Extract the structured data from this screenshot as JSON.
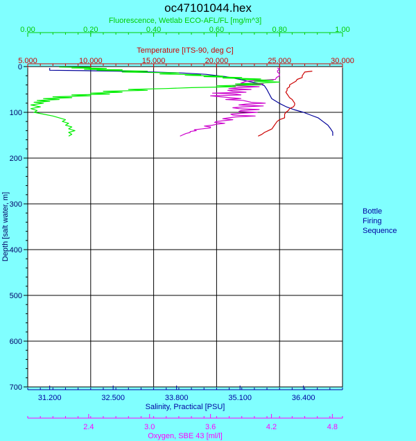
{
  "chart_data": {
    "type": "line",
    "title": "oc47101044.hex",
    "grid": true,
    "depth_axis": {
      "label": "Depth [salt water, m]",
      "range": [
        0,
        700
      ],
      "ticks": [
        "0",
        "100",
        "200",
        "300",
        "400",
        "500",
        "600",
        "700"
      ],
      "inverted": true
    },
    "x_axes": [
      {
        "id": "fluorescence",
        "label": "Fluorescence, Wetlab ECO-AFL/FL [mg/m^3]",
        "position": "top-outer",
        "range": [
          0.0,
          1.0
        ],
        "ticks": [
          "0.00",
          "0.20",
          "0.40",
          "0.60",
          "0.80",
          "1.00"
        ],
        "color": "#00cc00"
      },
      {
        "id": "temperature",
        "label": "Temperature [ITS-90, deg C]",
        "position": "top-inner",
        "range": [
          5.0,
          30.0
        ],
        "ticks": [
          "5.000",
          "10.000",
          "15.000",
          "20.000",
          "25.000",
          "30.000"
        ],
        "color": "#cc0000"
      },
      {
        "id": "salinity",
        "label": "Salinity, Practical [PSU]",
        "position": "bottom-inner",
        "range": [
          30.75,
          37.2
        ],
        "ticks": [
          "31.200",
          "32.500",
          "33.800",
          "35.100",
          "36.400"
        ],
        "tick_values": [
          31.2,
          32.5,
          33.8,
          35.1,
          36.4
        ],
        "color": "#0000a0"
      },
      {
        "id": "oxygen",
        "label": "Oxygen, SBE 43 [ml/l]",
        "position": "bottom-outer",
        "range": [
          1.8,
          4.9
        ],
        "ticks": [
          "2.4",
          "3.0",
          "3.6",
          "4.2",
          "4.8"
        ],
        "tick_values": [
          2.4,
          3.0,
          3.6,
          4.2,
          4.8
        ],
        "color": "#ff00ff"
      }
    ],
    "side_label": [
      "Bottle",
      "Firing",
      "Sequence"
    ],
    "series": [
      {
        "axis": "salinity",
        "color": "#000099",
        "points": [
          [
            31.2,
            3
          ],
          [
            31.2,
            8
          ],
          [
            31.9,
            9
          ],
          [
            32.6,
            10
          ],
          [
            33.3,
            12
          ],
          [
            33.9,
            14
          ],
          [
            34.4,
            17
          ],
          [
            34.8,
            22
          ],
          [
            35.1,
            28
          ],
          [
            35.3,
            33
          ],
          [
            35.5,
            37
          ],
          [
            35.6,
            42
          ],
          [
            35.65,
            50
          ],
          [
            35.7,
            60
          ],
          [
            35.75,
            70
          ],
          [
            35.9,
            80
          ],
          [
            36.05,
            88
          ],
          [
            36.2,
            94
          ],
          [
            36.4,
            100
          ],
          [
            36.55,
            106
          ],
          [
            36.7,
            112
          ],
          [
            36.8,
            120
          ],
          [
            36.9,
            128
          ],
          [
            36.95,
            135
          ],
          [
            37.0,
            143
          ],
          [
            37.0,
            151
          ]
        ]
      },
      {
        "axis": "temperature",
        "color": "#cc0000",
        "points": [
          [
            27.6,
            10
          ],
          [
            27.0,
            12
          ],
          [
            26.9,
            16
          ],
          [
            26.8,
            20
          ],
          [
            26.8,
            24
          ],
          [
            26.4,
            28
          ],
          [
            26.3,
            32
          ],
          [
            25.8,
            40
          ],
          [
            25.8,
            44
          ],
          [
            25.6,
            48
          ],
          [
            25.6,
            52
          ],
          [
            25.5,
            56
          ],
          [
            25.6,
            60
          ],
          [
            25.7,
            64
          ],
          [
            25.8,
            68
          ],
          [
            26.0,
            72
          ],
          [
            26.1,
            76
          ],
          [
            26.2,
            80
          ],
          [
            26.2,
            84
          ],
          [
            26.1,
            88
          ],
          [
            25.8,
            92
          ],
          [
            25.7,
            96
          ],
          [
            25.5,
            100
          ],
          [
            25.4,
            104
          ],
          [
            25.4,
            108
          ],
          [
            25.4,
            112
          ],
          [
            25.0,
            116
          ],
          [
            24.8,
            120
          ],
          [
            24.7,
            124
          ],
          [
            24.6,
            128
          ],
          [
            24.5,
            132
          ],
          [
            24.4,
            136
          ],
          [
            24.1,
            140
          ],
          [
            23.8,
            144
          ],
          [
            23.6,
            148
          ],
          [
            23.3,
            152
          ]
        ]
      },
      {
        "axis": "oxygen",
        "color": "#cc00cc",
        "points": [
          [
            4.26,
            3
          ],
          [
            4.28,
            6
          ],
          [
            4.26,
            9
          ],
          [
            4.26,
            12
          ],
          [
            4.28,
            16
          ],
          [
            4.28,
            20
          ],
          [
            4.25,
            24
          ],
          [
            4.24,
            28
          ],
          [
            3.95,
            32
          ],
          [
            3.9,
            36
          ],
          [
            4.12,
            38
          ],
          [
            3.87,
            40
          ],
          [
            3.82,
            42
          ],
          [
            4.08,
            44
          ],
          [
            3.88,
            46
          ],
          [
            3.78,
            48
          ],
          [
            4.0,
            50
          ],
          [
            3.77,
            52
          ],
          [
            3.82,
            54
          ],
          [
            3.95,
            56
          ],
          [
            3.62,
            58
          ],
          [
            3.85,
            60
          ],
          [
            3.9,
            62
          ],
          [
            3.6,
            64
          ],
          [
            3.7,
            66
          ],
          [
            3.9,
            70
          ],
          [
            3.75,
            72
          ],
          [
            3.92,
            74
          ],
          [
            4.0,
            78
          ],
          [
            4.14,
            80
          ],
          [
            3.95,
            82
          ],
          [
            3.88,
            84
          ],
          [
            4.12,
            86
          ],
          [
            3.92,
            88
          ],
          [
            3.82,
            90
          ],
          [
            3.88,
            92
          ],
          [
            4.08,
            94
          ],
          [
            3.9,
            96
          ],
          [
            3.88,
            98
          ],
          [
            4.06,
            100
          ],
          [
            3.9,
            102
          ],
          [
            3.8,
            104
          ],
          [
            3.82,
            106
          ],
          [
            4.04,
            108
          ],
          [
            3.85,
            110
          ],
          [
            3.78,
            112
          ],
          [
            3.72,
            114
          ],
          [
            3.82,
            116
          ],
          [
            3.74,
            118
          ],
          [
            3.66,
            120
          ],
          [
            3.64,
            122
          ],
          [
            3.74,
            124
          ],
          [
            3.66,
            126
          ],
          [
            3.62,
            128
          ],
          [
            3.54,
            130
          ],
          [
            3.6,
            132
          ],
          [
            3.6,
            134
          ],
          [
            3.52,
            136
          ],
          [
            3.44,
            138
          ],
          [
            3.46,
            140
          ],
          [
            3.4,
            142
          ],
          [
            3.4,
            144
          ],
          [
            3.36,
            146
          ],
          [
            3.34,
            148
          ],
          [
            3.32,
            150
          ],
          [
            3.3,
            152
          ]
        ]
      },
      {
        "axis": "fluorescence",
        "color": "#00ee00",
        "points": [
          [
            0.1,
            1
          ],
          [
            0.2,
            2
          ],
          [
            0.14,
            3
          ],
          [
            0.25,
            4
          ],
          [
            0.18,
            6
          ],
          [
            0.3,
            7
          ],
          [
            0.22,
            8
          ],
          [
            0.38,
            10
          ],
          [
            0.3,
            12
          ],
          [
            0.48,
            14
          ],
          [
            0.42,
            16
          ],
          [
            0.55,
            18
          ],
          [
            0.5,
            19
          ],
          [
            0.62,
            21
          ],
          [
            0.56,
            22
          ],
          [
            0.68,
            24
          ],
          [
            0.62,
            25
          ],
          [
            0.74,
            27
          ],
          [
            0.68,
            28
          ],
          [
            0.78,
            30
          ],
          [
            0.72,
            32
          ],
          [
            0.8,
            34
          ],
          [
            0.74,
            36
          ],
          [
            0.66,
            38
          ],
          [
            0.74,
            40
          ],
          [
            0.6,
            42
          ],
          [
            0.66,
            44
          ],
          [
            0.52,
            46
          ],
          [
            0.44,
            48
          ],
          [
            0.32,
            50
          ],
          [
            0.38,
            52
          ],
          [
            0.24,
            54
          ],
          [
            0.3,
            56
          ],
          [
            0.2,
            58
          ],
          [
            0.26,
            60
          ],
          [
            0.14,
            62
          ],
          [
            0.2,
            64
          ],
          [
            0.08,
            66
          ],
          [
            0.14,
            68
          ],
          [
            0.05,
            70
          ],
          [
            0.1,
            72
          ],
          [
            0.03,
            74
          ],
          [
            0.07,
            76
          ],
          [
            0.02,
            78
          ],
          [
            0.05,
            80
          ],
          [
            0.01,
            84
          ],
          [
            0.04,
            88
          ],
          [
            0.01,
            92
          ],
          [
            0.03,
            96
          ],
          [
            0.02,
            100
          ],
          [
            0.05,
            104
          ],
          [
            0.08,
            108
          ],
          [
            0.1,
            112
          ],
          [
            0.12,
            116
          ],
          [
            0.11,
            120
          ],
          [
            0.13,
            124
          ],
          [
            0.12,
            128
          ],
          [
            0.14,
            132
          ],
          [
            0.13,
            136
          ],
          [
            0.15,
            140
          ],
          [
            0.13,
            144
          ],
          [
            0.14,
            148
          ],
          [
            0.13,
            152
          ]
        ]
      }
    ]
  }
}
